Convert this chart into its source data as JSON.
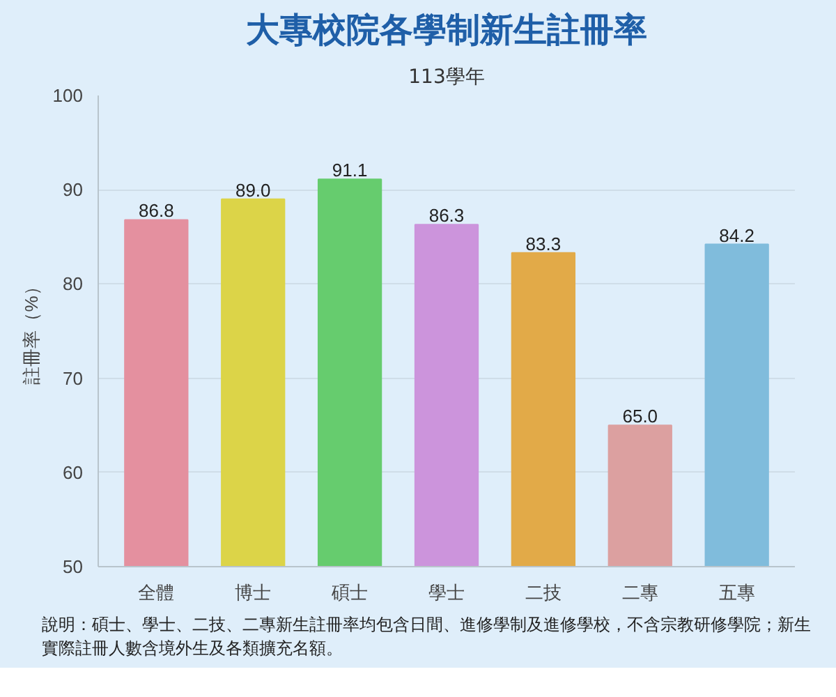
{
  "chart_data": {
    "type": "bar",
    "title": "大專校院各學制新生註冊率",
    "subtitle": "113學年",
    "ylabel": "註冊率（%）",
    "categories": [
      "全體",
      "博士",
      "碩士",
      "學士",
      "二技",
      "二專",
      "五專"
    ],
    "values": [
      86.8,
      89.0,
      91.1,
      86.3,
      83.3,
      65.0,
      84.2
    ],
    "value_labels": [
      "86.8",
      "89.0",
      "91.1",
      "86.3",
      "83.3",
      "65.0",
      "84.2"
    ],
    "colors": [
      "#e4909f",
      "#dcd448",
      "#66cc6e",
      "#cc94dc",
      "#e2aa48",
      "#dca0a0",
      "#80bcdc"
    ],
    "ylim": [
      50,
      100
    ],
    "yticks": [
      50,
      60,
      70,
      80,
      90,
      100
    ],
    "grid": "y",
    "annotations": [
      "說明：碩士、學士、二技、二專新生註冊率均包含日間、進修學制及進修學校，不含宗教研修學院；新生實際註冊人數含境外生及各類擴充名額。"
    ]
  }
}
